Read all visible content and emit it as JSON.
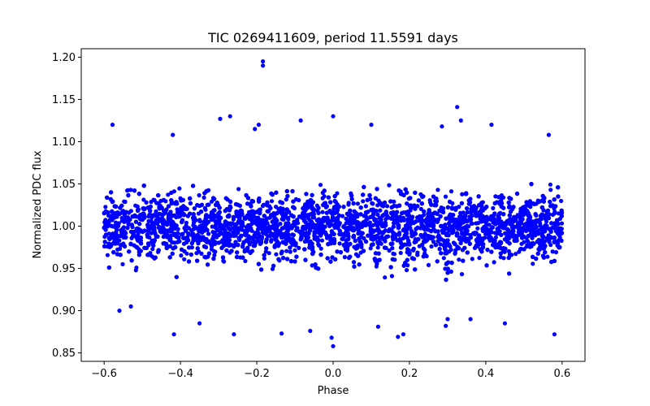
{
  "chart_data": {
    "type": "scatter",
    "title": "TIC 0269411609, period 11.5591 days",
    "xlabel": "Phase",
    "ylabel": "Normalized PDC flux",
    "xlim": [
      -0.66,
      0.66
    ],
    "ylim": [
      0.84,
      1.21
    ],
    "x_ticks": [
      -0.6,
      -0.4,
      -0.2,
      0.0,
      0.2,
      0.4,
      0.6
    ],
    "x_tick_labels": [
      "−0.6",
      "−0.4",
      "−0.2",
      "0.0",
      "0.2",
      "0.4",
      "0.6"
    ],
    "y_ticks": [
      0.85,
      0.9,
      0.95,
      1.0,
      1.05,
      1.1,
      1.15,
      1.2
    ],
    "y_tick_labels": [
      "0.85",
      "0.90",
      "0.95",
      "1.00",
      "1.05",
      "1.10",
      "1.15",
      "1.20"
    ],
    "marker_color": "#0000ff",
    "grid": false,
    "series": [
      {
        "name": "flux",
        "phase_range": [
          -0.6,
          0.6
        ],
        "core_band": [
          0.95,
          1.06
        ],
        "outliers": [
          {
            "x": -0.184,
            "y": 1.195
          },
          {
            "x": -0.184,
            "y": 1.19
          },
          {
            "x": -0.578,
            "y": 1.12
          },
          {
            "x": -0.27,
            "y": 1.13
          },
          {
            "x": -0.296,
            "y": 1.127
          },
          {
            "x": 0.0,
            "y": 1.13
          },
          {
            "x": 0.325,
            "y": 1.141
          },
          {
            "x": 0.335,
            "y": 1.125
          },
          {
            "x": -0.195,
            "y": 1.12
          },
          {
            "x": -0.205,
            "y": 1.115
          },
          {
            "x": 0.1,
            "y": 1.12
          },
          {
            "x": 0.285,
            "y": 1.118
          },
          {
            "x": 0.415,
            "y": 1.12
          },
          {
            "x": 0.565,
            "y": 1.108
          },
          {
            "x": -0.42,
            "y": 1.108
          },
          {
            "x": -0.085,
            "y": 1.125
          },
          {
            "x": -0.0,
            "y": 0.858
          },
          {
            "x": -0.004,
            "y": 0.868
          },
          {
            "x": -0.417,
            "y": 0.872
          },
          {
            "x": -0.26,
            "y": 0.872
          },
          {
            "x": -0.135,
            "y": 0.873
          },
          {
            "x": 0.17,
            "y": 0.869
          },
          {
            "x": 0.184,
            "y": 0.872
          },
          {
            "x": 0.118,
            "y": 0.881
          },
          {
            "x": 0.295,
            "y": 0.882
          },
          {
            "x": 0.58,
            "y": 0.872
          },
          {
            "x": -0.35,
            "y": 0.885
          },
          {
            "x": -0.06,
            "y": 0.876
          },
          {
            "x": 0.3,
            "y": 0.89
          },
          {
            "x": 0.36,
            "y": 0.89
          },
          {
            "x": 0.45,
            "y": 0.885
          },
          {
            "x": -0.56,
            "y": 0.9
          },
          {
            "x": -0.53,
            "y": 0.905
          }
        ]
      }
    ]
  }
}
